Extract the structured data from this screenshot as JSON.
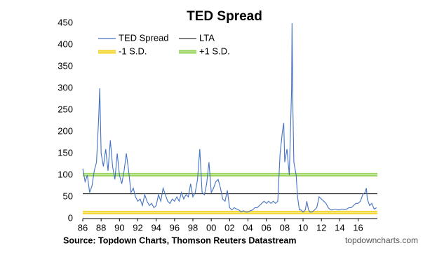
{
  "chart_data": {
    "type": "line",
    "title": "TED Spread",
    "xlim": [
      1986,
      2018.1
    ],
    "xticks": [
      {
        "value": 1986,
        "label": "86"
      },
      {
        "value": 1988,
        "label": "88"
      },
      {
        "value": 1990,
        "label": "90"
      },
      {
        "value": 1992,
        "label": "92"
      },
      {
        "value": 1994,
        "label": "94"
      },
      {
        "value": 1996,
        "label": "96"
      },
      {
        "value": 1998,
        "label": "98"
      },
      {
        "value": 2000,
        "label": "00"
      },
      {
        "value": 2002,
        "label": "02"
      },
      {
        "value": 2004,
        "label": "04"
      },
      {
        "value": 2006,
        "label": "06"
      },
      {
        "value": 2008,
        "label": "08"
      },
      {
        "value": 2010,
        "label": "10"
      },
      {
        "value": 2012,
        "label": "12"
      },
      {
        "value": 2014,
        "label": "14"
      },
      {
        "value": 2016,
        "label": "16"
      }
    ],
    "ylim": [
      0,
      450
    ],
    "yticks": [
      0,
      50,
      100,
      150,
      200,
      250,
      300,
      350,
      400,
      450
    ],
    "x": [
      1986.0,
      1986.25,
      1986.5,
      1986.75,
      1987.0,
      1987.25,
      1987.5,
      1987.75,
      1987.85,
      1988.0,
      1988.25,
      1988.5,
      1988.75,
      1989.0,
      1989.25,
      1989.5,
      1989.75,
      1990.0,
      1990.25,
      1990.5,
      1990.75,
      1991.0,
      1991.25,
      1991.5,
      1991.75,
      1992.0,
      1992.25,
      1992.5,
      1992.75,
      1993.0,
      1993.25,
      1993.5,
      1993.75,
      1994.0,
      1994.25,
      1994.5,
      1994.75,
      1995.0,
      1995.25,
      1995.5,
      1995.75,
      1996.0,
      1996.25,
      1996.5,
      1996.75,
      1997.0,
      1997.25,
      1997.5,
      1997.75,
      1998.0,
      1998.25,
      1998.5,
      1998.75,
      1999.0,
      1999.25,
      1999.5,
      1999.75,
      2000.0,
      2000.25,
      2000.5,
      2000.75,
      2001.0,
      2001.25,
      2001.5,
      2001.75,
      2002.0,
      2002.25,
      2002.5,
      2002.75,
      2003.0,
      2003.25,
      2003.5,
      2003.75,
      2004.0,
      2004.25,
      2004.5,
      2004.75,
      2005.0,
      2005.25,
      2005.5,
      2005.75,
      2006.0,
      2006.25,
      2006.5,
      2006.75,
      2007.0,
      2007.25,
      2007.5,
      2007.75,
      2007.9,
      2008.0,
      2008.25,
      2008.5,
      2008.75,
      2008.8,
      2008.9,
      2009.0,
      2009.25,
      2009.4,
      2009.6,
      2009.75,
      2010.0,
      2010.25,
      2010.4,
      2010.6,
      2010.75,
      2011.0,
      2011.25,
      2011.5,
      2011.75,
      2012.0,
      2012.25,
      2012.5,
      2012.75,
      2013.0,
      2013.25,
      2013.5,
      2013.75,
      2014.0,
      2014.25,
      2014.5,
      2014.75,
      2015.0,
      2015.25,
      2015.5,
      2015.75,
      2016.0,
      2016.25,
      2016.5,
      2016.75,
      2016.9,
      2017.0,
      2017.25,
      2017.5,
      2017.75,
      2018.0
    ],
    "series": [
      {
        "name": "TED Spread",
        "color": "#4472c4",
        "values": [
          115,
          85,
          100,
          60,
          75,
          110,
          130,
          240,
          300,
          150,
          120,
          160,
          110,
          180,
          120,
          90,
          150,
          100,
          80,
          110,
          150,
          110,
          60,
          70,
          50,
          40,
          45,
          30,
          55,
          40,
          30,
          35,
          25,
          30,
          55,
          40,
          70,
          55,
          40,
          35,
          45,
          40,
          50,
          40,
          60,
          45,
          55,
          50,
          80,
          50,
          60,
          90,
          160,
          60,
          55,
          80,
          130,
          60,
          70,
          85,
          90,
          70,
          45,
          40,
          65,
          25,
          20,
          25,
          22,
          20,
          15,
          18,
          15,
          15,
          18,
          20,
          25,
          25,
          30,
          35,
          40,
          35,
          40,
          35,
          40,
          35,
          40,
          150,
          200,
          220,
          130,
          160,
          100,
          300,
          450,
          250,
          130,
          100,
          50,
          20,
          20,
          15,
          20,
          40,
          20,
          15,
          15,
          20,
          25,
          50,
          45,
          40,
          35,
          25,
          20,
          20,
          22,
          20,
          20,
          22,
          20,
          22,
          25,
          25,
          30,
          35,
          35,
          40,
          55,
          60,
          70,
          45,
          30,
          35,
          22,
          25
        ]
      }
    ],
    "reference_lines": [
      {
        "name": "LTA",
        "value": 57,
        "color": "#000000"
      },
      {
        "name": "-1 S.D.",
        "value": 14,
        "color": "#f2d31b"
      },
      {
        "name": "+1 S.D.",
        "value": 101,
        "color": "#92d050"
      }
    ],
    "source": "Source: Topdown Charts, Thomson Reuters Datastream",
    "watermark": "topdowncharts.com"
  }
}
